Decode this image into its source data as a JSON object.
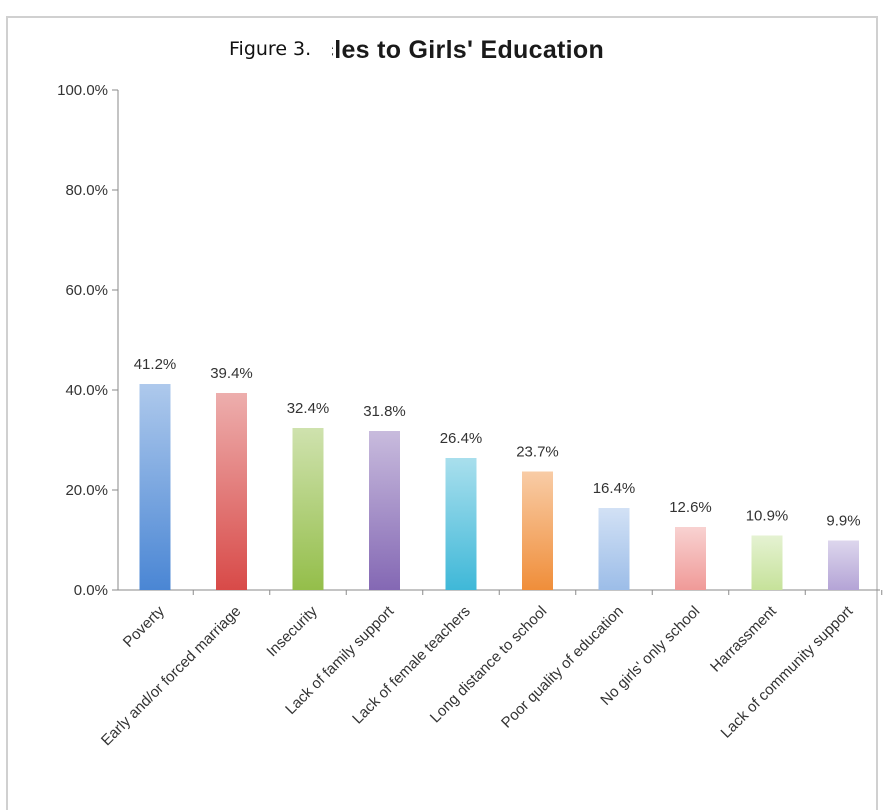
{
  "caption": "Figure 3.",
  "chart_data": {
    "type": "bar",
    "title_visible_fragment": "cles to Girls' Education",
    "categories": [
      "Poverty",
      "Early and/or forced marriage",
      "Insecurity",
      "Lack of family support",
      "Lack of female teachers",
      "Long distance to school",
      "Poor quality of education",
      "No girls' only school",
      "Harrassment",
      "Lack of community support"
    ],
    "values": [
      41.2,
      39.4,
      32.4,
      31.8,
      26.4,
      23.7,
      16.4,
      12.6,
      10.9,
      9.9
    ],
    "value_labels": [
      "41.2%",
      "39.4%",
      "32.4%",
      "31.8%",
      "26.4%",
      "23.7%",
      "16.4%",
      "12.6%",
      "10.9%",
      "9.9%"
    ],
    "colors": [
      "#4a86d4",
      "#d84a48",
      "#94be4a",
      "#8468b4",
      "#3fb8d8",
      "#f08e3a",
      "#9cbde8",
      "#f09a98",
      "#c6e29a",
      "#b4a4d6"
    ],
    "yticks": [
      "0.0%",
      "20.0%",
      "40.0%",
      "60.0%",
      "80.0%",
      "100.0%"
    ],
    "ylim": [
      0,
      100
    ],
    "xlabel": "",
    "ylabel": "",
    "grid": false,
    "legend": "none"
  }
}
